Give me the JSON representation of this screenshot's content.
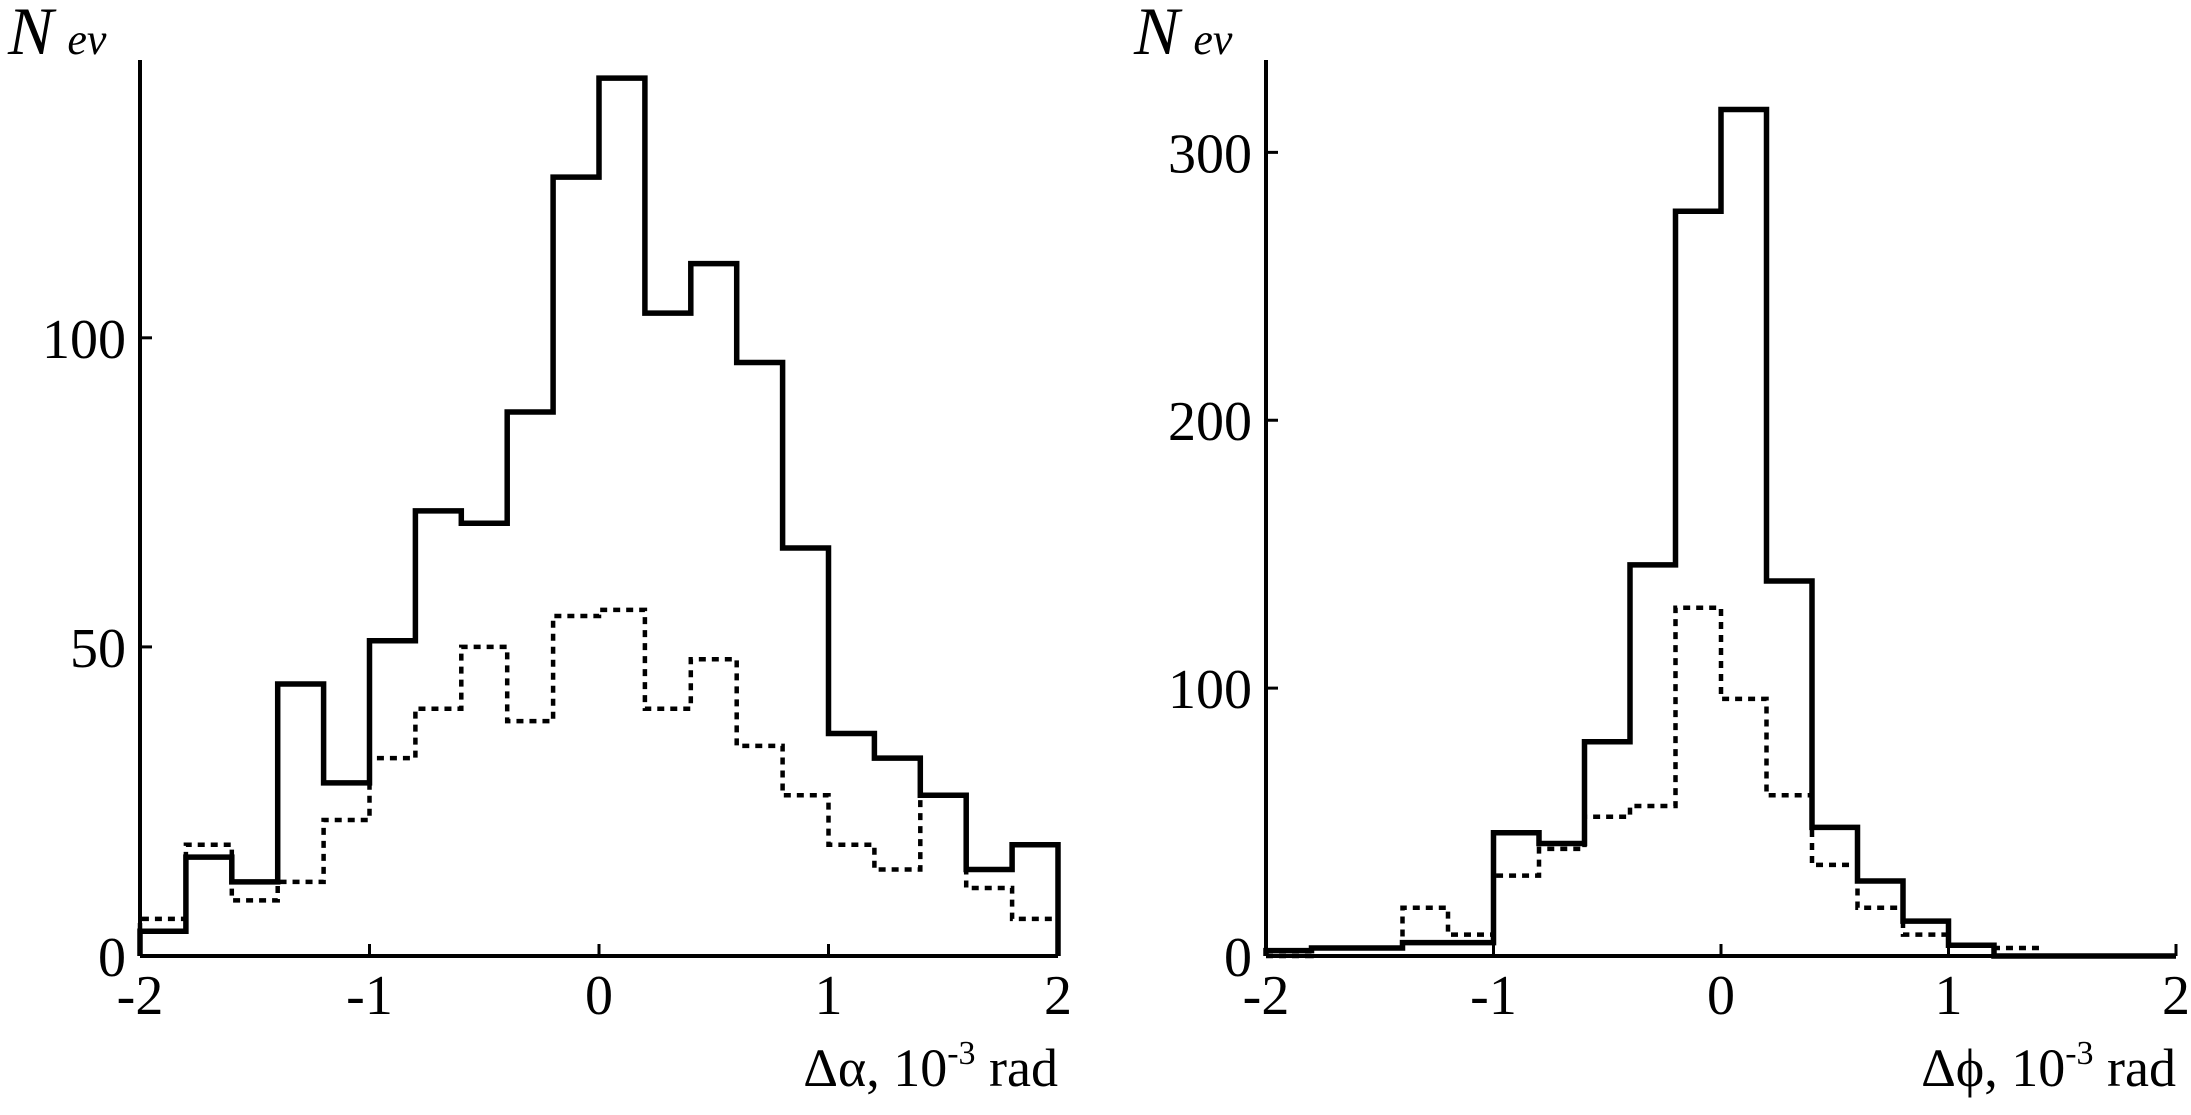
{
  "chart_data": [
    {
      "type": "histogram",
      "ylabel": {
        "main": "N",
        "sub": "ev"
      },
      "xlabel": {
        "prefix": "Δα, 10",
        "sup": "-3",
        "suffix": " rad"
      },
      "xlim": [
        -2,
        2
      ],
      "ylim": [
        0,
        143
      ],
      "x_ticks": [
        "-2",
        "-1",
        "0",
        "1",
        "2"
      ],
      "y_ticks": [
        "0",
        "50",
        "100"
      ],
      "bin_edges": [
        -2.0,
        -1.8,
        -1.6,
        -1.4,
        -1.2,
        -1.0,
        -0.8,
        -0.6,
        -0.4,
        -0.2,
        0.0,
        0.2,
        0.4,
        0.6,
        0.8,
        1.0,
        1.2,
        1.4,
        1.6,
        1.8,
        2.0
      ],
      "series": [
        {
          "style": "solid",
          "values": [
            4,
            16,
            12,
            44,
            28,
            51,
            72,
            70,
            88,
            126,
            142,
            104,
            112,
            96,
            66,
            36,
            32,
            26,
            14,
            18
          ]
        },
        {
          "style": "dotted",
          "values": [
            6,
            18,
            9,
            12,
            22,
            32,
            40,
            50,
            38,
            55,
            56,
            40,
            48,
            34,
            26,
            18,
            14,
            26,
            11,
            6
          ]
        }
      ]
    },
    {
      "type": "histogram",
      "ylabel": {
        "main": "N",
        "sub": "ev"
      },
      "xlabel": {
        "prefix": "Δϕ, 10",
        "sup": "-3",
        "suffix": " rad"
      },
      "xlim": [
        -2,
        2
      ],
      "ylim": [
        0,
        330
      ],
      "x_ticks": [
        "-2",
        "-1",
        "0",
        "1",
        "2"
      ],
      "y_ticks": [
        "0",
        "100",
        "200",
        "300"
      ],
      "bin_edges": [
        -2.0,
        -1.8,
        -1.6,
        -1.4,
        -1.2,
        -1.0,
        -0.8,
        -0.6,
        -0.4,
        -0.2,
        0.0,
        0.2,
        0.4,
        0.6,
        0.8,
        1.0,
        1.2,
        1.4,
        1.6,
        1.8,
        2.0
      ],
      "series": [
        {
          "style": "solid",
          "values": [
            2,
            3,
            3,
            5,
            5,
            46,
            42,
            80,
            146,
            278,
            316,
            140,
            48,
            28,
            13,
            4,
            0,
            0,
            0,
            0
          ]
        },
        {
          "style": "dotted",
          "values": [
            0,
            3,
            3,
            18,
            8,
            30,
            40,
            52,
            56,
            130,
            96,
            60,
            34,
            18,
            8,
            4,
            3,
            0,
            0,
            0
          ]
        }
      ]
    }
  ]
}
